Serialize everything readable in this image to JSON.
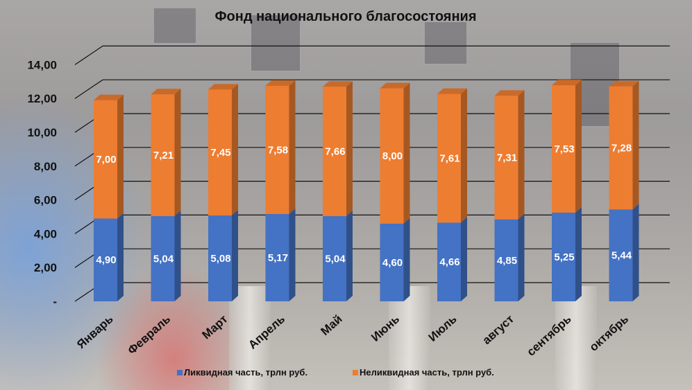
{
  "chart_data": {
    "type": "bar",
    "stacked": true,
    "title": "Фонд национального благосостояния",
    "categories": [
      "Январь",
      "Февраль",
      "Март",
      "Апрель",
      "Май",
      "Июнь",
      "Июль",
      "август",
      "сентябрь",
      "октябрь"
    ],
    "series": [
      {
        "name": "Ликвидная часть, трлн руб.",
        "color": "#4472C4",
        "values": [
          4.9,
          5.04,
          5.08,
          5.17,
          5.04,
          4.6,
          4.66,
          4.85,
          5.25,
          5.44
        ]
      },
      {
        "name": "Неликвидная часть, трлн руб.",
        "color": "#ED7D31",
        "values": [
          7.0,
          7.21,
          7.45,
          7.58,
          7.66,
          8.0,
          7.61,
          7.31,
          7.53,
          7.28
        ]
      }
    ],
    "data_labels": [
      [
        "4,90",
        "5,04",
        "5,08",
        "5,17",
        "5,04",
        "4,60",
        "4,66",
        "4,85",
        "5,25",
        "5,44"
      ],
      [
        "7,00",
        "7,21",
        "7,45",
        "7,58",
        "7,66",
        "8,00",
        "7,61",
        "7,31",
        "7,53",
        "7,28"
      ]
    ],
    "yticks": [
      0,
      2,
      4,
      6,
      8,
      10,
      12,
      14
    ],
    "ytick_labels": [
      "-",
      "2,00",
      "4,00",
      "6,00",
      "8,00",
      "10,00",
      "12,00",
      "14,00"
    ],
    "ylim": [
      0,
      14
    ],
    "grid": true,
    "legend_position": "bottom"
  }
}
